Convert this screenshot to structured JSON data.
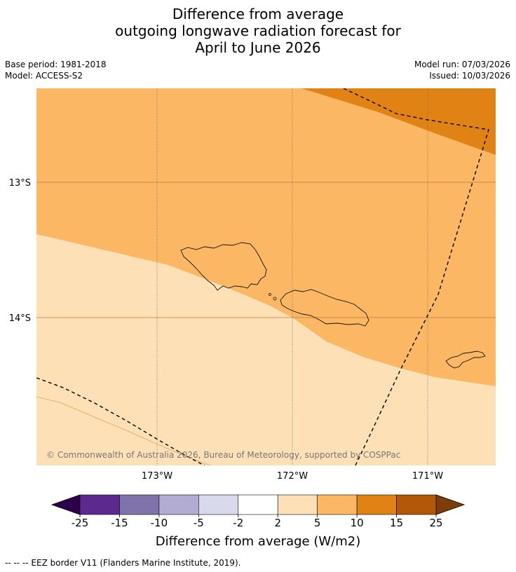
{
  "title": {
    "line1": "Difference from average",
    "line2": "outgoing longwave radiation forecast for",
    "line3": "April to June 2026"
  },
  "meta": {
    "base_period": "Base period: 1981-2018",
    "model": "Model: ACCESS-S2",
    "model_run": "Model run: 07/03/2026",
    "issued": "Issued: 10/03/2026"
  },
  "map": {
    "lat_labels": [
      "13°S",
      "14°S"
    ],
    "lon_labels": [
      "173°W",
      "172°W",
      "171°W"
    ],
    "copyright": "© Commonwealth of Australia 2026, Bureau of Meteorology, supported by COSPPac",
    "colors": {
      "band_2_5": "#fde0b6",
      "band_5_10": "#fbb764",
      "band_10_15": "#e08214"
    }
  },
  "colorbar": {
    "ticks": [
      "-25",
      "-15",
      "-10",
      "-5",
      "-2",
      "2",
      "5",
      "10",
      "15",
      "25"
    ],
    "colors": [
      "#5a2a8e",
      "#8073ac",
      "#b2abd2",
      "#d8daeb",
      "#ffffff",
      "#fde0b6",
      "#fbb764",
      "#e08214",
      "#b35806"
    ],
    "under_color": "#2d004b",
    "over_color": "#7f3b08",
    "label": "Difference from average (W/m2)"
  },
  "legend": {
    "eez": "--  --  -- EEZ border V11 (Flanders Marine Institute, 2019)."
  }
}
